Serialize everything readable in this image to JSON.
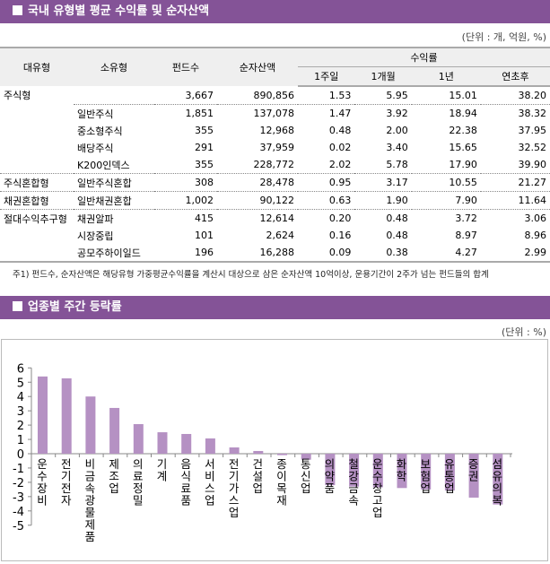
{
  "section1": {
    "title": "국내 유형별 평균 수익률 및 순자산액",
    "unit": "(단위 : 개, 억원, %)"
  },
  "table": {
    "headers": {
      "major": "대유형",
      "minor": "소유형",
      "funds": "펀드수",
      "assets": "순자산액",
      "returns": "수익률",
      "w1": "1주일",
      "m1": "1개월",
      "y1": "1년",
      "ytd": "연초후"
    },
    "rows": [
      {
        "major": "주식형",
        "minor": "",
        "funds": "3,667",
        "assets": "890,856",
        "w1": "1.53",
        "m1": "5.95",
        "y1": "15.01",
        "ytd": "38.20"
      },
      {
        "major": "",
        "minor": "일반주식",
        "funds": "1,851",
        "assets": "137,078",
        "w1": "1.47",
        "m1": "3.92",
        "y1": "18.94",
        "ytd": "38.32"
      },
      {
        "major": "",
        "minor": "중소형주식",
        "funds": "355",
        "assets": "12,968",
        "w1": "0.48",
        "m1": "2.00",
        "y1": "22.38",
        "ytd": "37.95"
      },
      {
        "major": "",
        "minor": "배당주식",
        "funds": "291",
        "assets": "37,959",
        "w1": "0.02",
        "m1": "3.40",
        "y1": "15.65",
        "ytd": "32.52"
      },
      {
        "major": "",
        "minor": "K200인덱스",
        "funds": "355",
        "assets": "228,772",
        "w1": "2.02",
        "m1": "5.78",
        "y1": "17.90",
        "ytd": "39.90"
      },
      {
        "major": "주식혼합형",
        "minor": "일반주식혼합",
        "funds": "308",
        "assets": "28,478",
        "w1": "0.95",
        "m1": "3.17",
        "y1": "10.55",
        "ytd": "21.27"
      },
      {
        "major": "채권혼합형",
        "minor": "일반채권혼합",
        "funds": "1,002",
        "assets": "90,122",
        "w1": "0.63",
        "m1": "1.90",
        "y1": "7.90",
        "ytd": "11.64"
      },
      {
        "major": "절대수익추구형",
        "minor": "채권알파",
        "funds": "415",
        "assets": "12,614",
        "w1": "0.20",
        "m1": "0.48",
        "y1": "3.72",
        "ytd": "3.06"
      },
      {
        "major": "",
        "minor": "시장중립",
        "funds": "101",
        "assets": "2,624",
        "w1": "0.16",
        "m1": "0.48",
        "y1": "8.97",
        "ytd": "8.96"
      },
      {
        "major": "",
        "minor": "공모주하이일드",
        "funds": "196",
        "assets": "16,288",
        "w1": "0.09",
        "m1": "0.38",
        "y1": "4.27",
        "ytd": "2.99"
      }
    ],
    "note": "주1) 펀드수, 순자산액은 해당유형 가중평균수익률을 계산시 대상으로 삼은 순자산액 10억이상, 운용기간이 2주가 넘는 펀드들의 합계"
  },
  "section2": {
    "title": "업종별 주간 등락률",
    "unit": "(단위 : %)"
  },
  "chart_data": {
    "type": "bar",
    "categories": [
      "운수장비",
      "전기전자",
      "비금속광물제품",
      "제조업",
      "의료정밀",
      "기계",
      "음식료품",
      "서비스업",
      "전기가스업",
      "건설업",
      "종이목재",
      "통신업",
      "의약품",
      "철강금속",
      "운수창고업",
      "화학",
      "보험업",
      "유통업",
      "증권",
      "섬유의복"
    ],
    "values": [
      5.4,
      5.27,
      4.0,
      3.2,
      2.07,
      1.5,
      1.38,
      1.07,
      0.44,
      0.19,
      -0.1,
      -0.42,
      -2.2,
      -2.3,
      -2.35,
      -2.4,
      -2.5,
      -2.57,
      -3.07,
      -3.55
    ],
    "ylim": [
      -5,
      6
    ],
    "yticks": [
      6,
      5,
      4,
      3,
      2,
      1,
      0,
      -1,
      -2,
      -3,
      -4,
      -5
    ],
    "bar_color": "#b591c3",
    "grid": false
  }
}
